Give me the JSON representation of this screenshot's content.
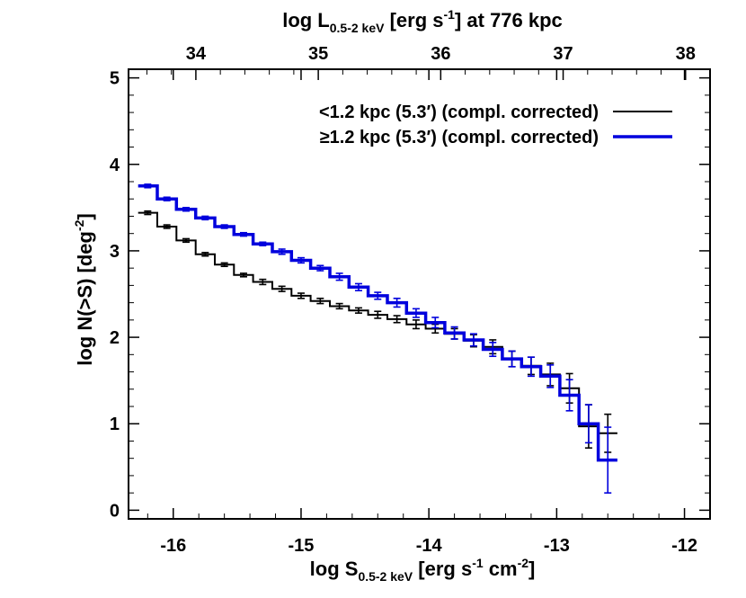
{
  "chart_data": {
    "type": "line",
    "xlabel": {
      "main": "log S",
      "sub": "0.5-2 keV",
      "rest_pre": " [erg s",
      "sup1": "-1",
      "mid": " cm",
      "sup2": "-2",
      "rest_post": "]"
    },
    "x2label": {
      "main": "log L",
      "sub": "0.5-2 keV",
      "rest_pre": " [erg s",
      "sup1": "-1",
      "rest_post": "] at 776 kpc"
    },
    "ylabel": {
      "main": "log N(>S) [deg",
      "sup": "-2",
      "rest_post": "]"
    },
    "xlim": [
      -16.35,
      -11.8
    ],
    "ylim": [
      -0.1,
      5.1
    ],
    "x2lim": [
      33.45,
      38.2
    ],
    "xticks": [
      "-16",
      "-15",
      "-14",
      "-13",
      "-12"
    ],
    "xtick_values": [
      -16,
      -15,
      -14,
      -13,
      -12
    ],
    "x2ticks": [
      "34",
      "35",
      "36",
      "37",
      "38"
    ],
    "x2tick_values": [
      34,
      35,
      36,
      37,
      38
    ],
    "yticks": [
      "0",
      "1",
      "2",
      "3",
      "4",
      "5"
    ],
    "ytick_values": [
      0,
      1,
      2,
      3,
      4,
      5
    ],
    "series": [
      {
        "name": "<1.2 kpc (5.3′) (compl. corrected)",
        "color": "#000000",
        "x": [
          -16.2,
          -16.05,
          -15.9,
          -15.75,
          -15.6,
          -15.45,
          -15.3,
          -15.15,
          -15.0,
          -14.85,
          -14.7,
          -14.55,
          -14.4,
          -14.25,
          -14.1,
          -13.95,
          -13.8,
          -13.65,
          -13.5,
          -13.35,
          -13.2,
          -13.05,
          -12.9,
          -12.75,
          -12.6
        ],
        "y": [
          3.44,
          3.28,
          3.12,
          2.96,
          2.84,
          2.72,
          2.64,
          2.56,
          2.48,
          2.42,
          2.36,
          2.31,
          2.26,
          2.21,
          2.15,
          2.1,
          2.04,
          1.96,
          1.89,
          1.75,
          1.67,
          1.57,
          1.41,
          0.97,
          0.89
        ],
        "err": [
          0.02,
          0.02,
          0.02,
          0.02,
          0.02,
          0.02,
          0.03,
          0.03,
          0.03,
          0.03,
          0.03,
          0.03,
          0.04,
          0.04,
          0.05,
          0.05,
          0.06,
          0.07,
          0.08,
          0.09,
          0.1,
          0.13,
          0.17,
          0.25,
          0.22
        ]
      },
      {
        "name": "≥1.2 kpc (5.3′) (compl. corrected)",
        "color": "#0000dd",
        "x": [
          -16.2,
          -16.05,
          -15.9,
          -15.75,
          -15.6,
          -15.45,
          -15.3,
          -15.15,
          -15.0,
          -14.85,
          -14.7,
          -14.55,
          -14.4,
          -14.25,
          -14.1,
          -13.95,
          -13.8,
          -13.65,
          -13.5,
          -13.35,
          -13.2,
          -13.05,
          -12.9,
          -12.75,
          -12.6
        ],
        "y": [
          3.75,
          3.6,
          3.48,
          3.38,
          3.28,
          3.19,
          3.08,
          2.99,
          2.89,
          2.8,
          2.7,
          2.58,
          2.48,
          2.4,
          2.28,
          2.17,
          2.05,
          1.97,
          1.86,
          1.75,
          1.66,
          1.55,
          1.33,
          1.0,
          0.58
        ],
        "err": [
          0.02,
          0.02,
          0.02,
          0.02,
          0.02,
          0.02,
          0.02,
          0.03,
          0.03,
          0.03,
          0.04,
          0.04,
          0.04,
          0.05,
          0.05,
          0.06,
          0.07,
          0.07,
          0.08,
          0.09,
          0.11,
          0.13,
          0.18,
          0.22,
          0.38
        ]
      }
    ],
    "legend_position": "top-right"
  }
}
